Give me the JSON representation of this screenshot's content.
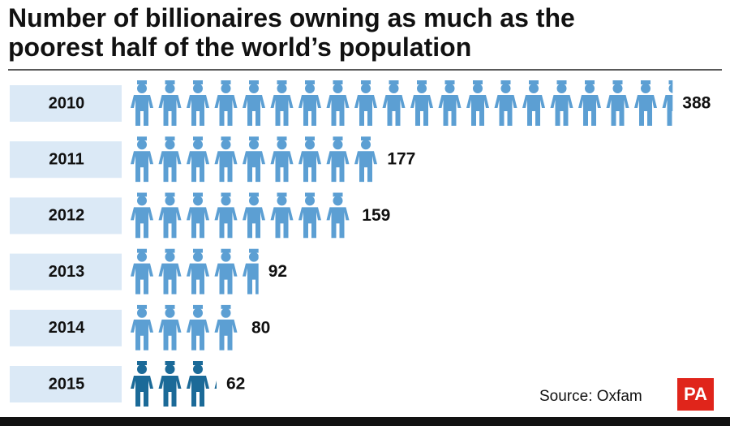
{
  "chart_data": {
    "type": "pictogram",
    "title": "Number of billionaires owning as much as the poorest half of the world’s population",
    "categories": [
      "2010",
      "2011",
      "2012",
      "2013",
      "2014",
      "2015"
    ],
    "values": [
      388,
      177,
      159,
      92,
      80,
      62
    ],
    "colors": [
      "#5c9fd3",
      "#5c9fd3",
      "#5c9fd3",
      "#5c9fd3",
      "#5c9fd3",
      "#1b6a98"
    ],
    "source": "Source: Oxfam",
    "logo": "PA"
  }
}
